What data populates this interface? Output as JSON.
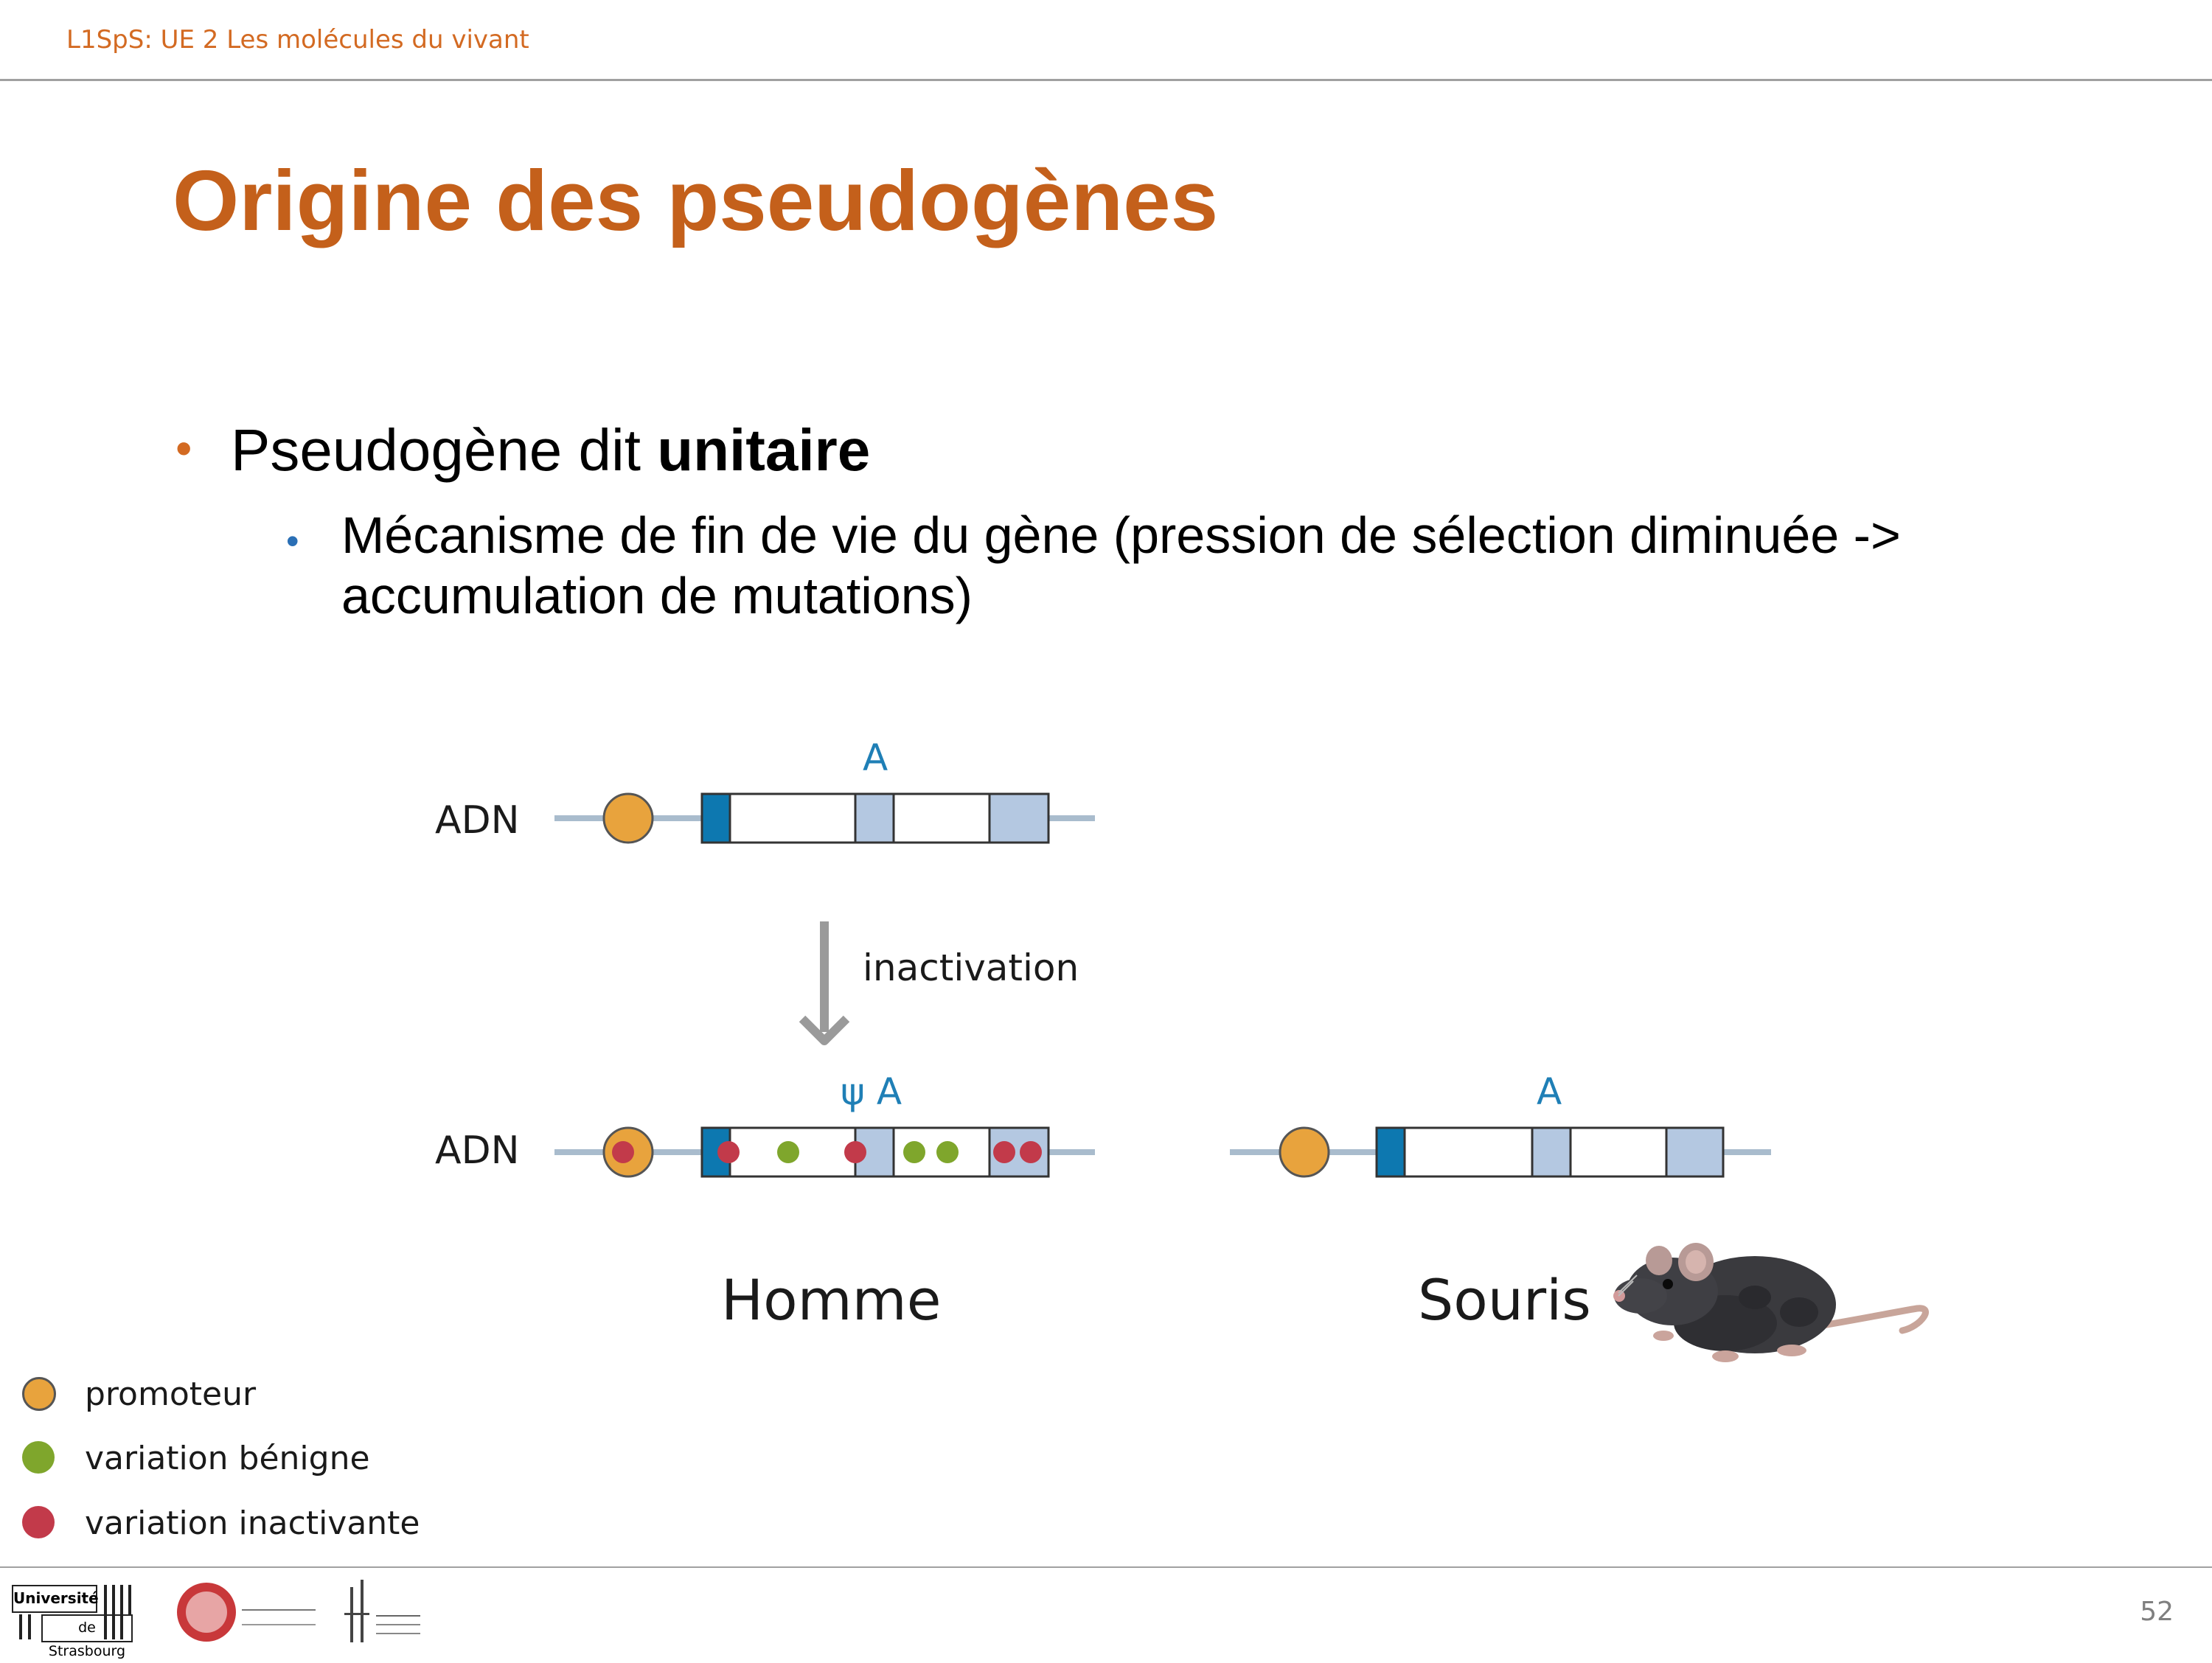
{
  "header": {
    "course": "L1SpS: UE 2 Les molécules du vivant"
  },
  "slide": {
    "title": "Origine des pseudogènes",
    "bullet1": {
      "prefix": "Pseudogène dit ",
      "bold": "unitaire"
    },
    "bullet2": {
      "text": "Mécanisme de fin de vie du gène (pression de sélection diminuée -> accumulation de mutations)"
    }
  },
  "diagram": {
    "dna_label_top": "ADN",
    "gene_label_top": "A",
    "arrow_label": "inactivation",
    "dna_label_bottom": "ADN",
    "pseudo_gene_label": "ψ A",
    "mouse_gene_label": "A",
    "species_human": "Homme",
    "species_mouse": "Souris"
  },
  "legend": {
    "items": [
      {
        "label": "promoteur",
        "color": "#e8a33d"
      },
      {
        "label": "variation bénigne",
        "color": "#7fa62c"
      },
      {
        "label": "variation inactivante",
        "color": "#c23a4a"
      }
    ]
  },
  "footer": {
    "logo1_line1": "Université",
    "logo1_line2": "de Strasbourg",
    "page_number": "52"
  },
  "colors": {
    "accent": "#d36a22",
    "exon_dark": "#0d78b0",
    "exon_light": "#b4c8e1",
    "dna_line": "#a9bccd",
    "promoter": "#e8a33d"
  }
}
